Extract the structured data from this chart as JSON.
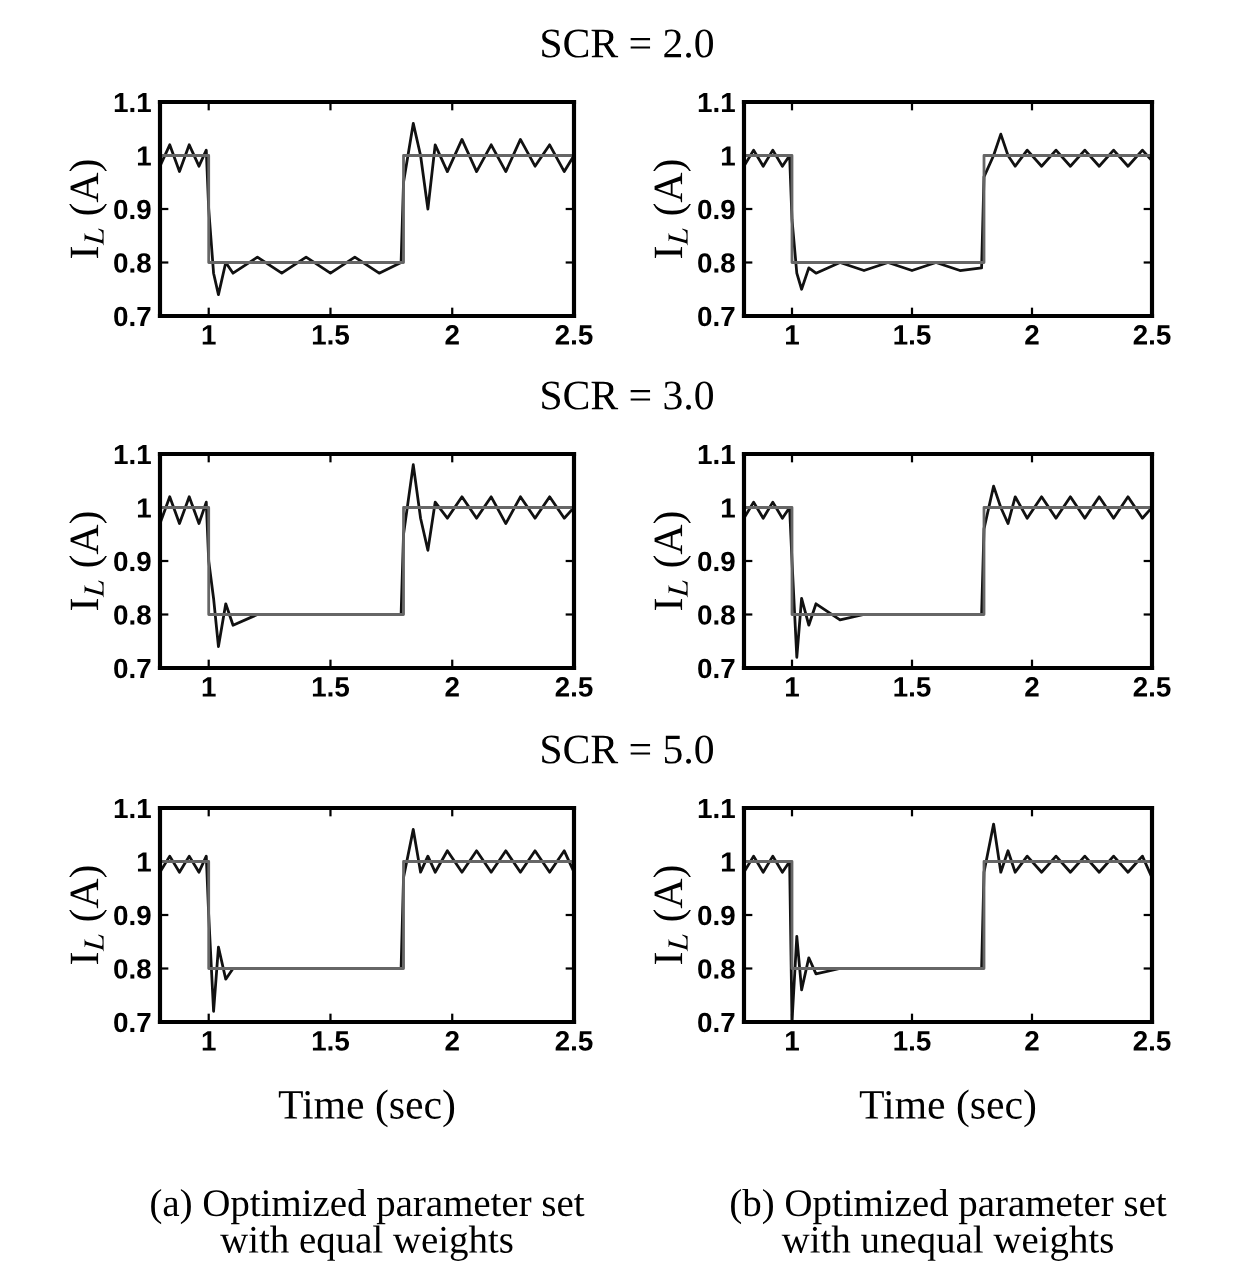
{
  "chart_data": [
    {
      "type": "line",
      "title": "SCR = 2.0",
      "ylabel": "I$_{L}$ (A)",
      "xlim": [
        0.8,
        2.5
      ],
      "xticks": [
        1,
        1.5,
        2,
        2.5
      ],
      "ylim": [
        0.7,
        1.1
      ],
      "yticks": [
        0.7,
        0.8,
        0.9,
        1,
        1.1
      ],
      "grid": false,
      "legend": false,
      "x": [
        0.8,
        0.84,
        0.88,
        0.92,
        0.96,
        0.99,
        1.0,
        1.02,
        1.04,
        1.07,
        1.1,
        1.2,
        1.3,
        1.4,
        1.5,
        1.6,
        1.7,
        1.79,
        1.8,
        1.84,
        1.87,
        1.9,
        1.93,
        1.98,
        2.04,
        2.1,
        2.16,
        2.22,
        2.28,
        2.34,
        2.4,
        2.46,
        2.5
      ],
      "series": [
        {
          "color": "#111111",
          "values": [
            0.98,
            1.02,
            0.97,
            1.02,
            0.98,
            1.01,
            0.9,
            0.78,
            0.74,
            0.8,
            0.78,
            0.81,
            0.78,
            0.81,
            0.78,
            0.81,
            0.78,
            0.8,
            0.95,
            1.06,
            1.0,
            0.9,
            1.02,
            0.97,
            1.03,
            0.97,
            1.02,
            0.97,
            1.03,
            0.98,
            1.02,
            0.97,
            1.0
          ]
        },
        {
          "color": "#666666",
          "x": [
            0.8,
            1.0,
            1.0,
            1.8,
            1.8,
            2.5
          ],
          "values": [
            1,
            1,
            0.8,
            0.8,
            1,
            1
          ]
        }
      ]
    },
    {
      "type": "line",
      "ylabel": "I$_{L}$ (A)",
      "xlim": [
        0.8,
        2.5
      ],
      "xticks": [
        1,
        1.5,
        2,
        2.5
      ],
      "ylim": [
        0.7,
        1.1
      ],
      "yticks": [
        0.7,
        0.8,
        0.9,
        1,
        1.1
      ],
      "grid": false,
      "legend": false,
      "x": [
        0.8,
        0.84,
        0.88,
        0.92,
        0.96,
        0.99,
        1.0,
        1.02,
        1.04,
        1.07,
        1.1,
        1.2,
        1.3,
        1.4,
        1.5,
        1.6,
        1.7,
        1.79,
        1.8,
        1.84,
        1.87,
        1.9,
        1.93,
        1.98,
        2.04,
        2.1,
        2.16,
        2.22,
        2.28,
        2.34,
        2.4,
        2.46,
        2.5
      ],
      "series": [
        {
          "color": "#111111",
          "values": [
            0.98,
            1.01,
            0.98,
            1.01,
            0.98,
            1.0,
            0.88,
            0.78,
            0.75,
            0.79,
            0.78,
            0.8,
            0.785,
            0.8,
            0.785,
            0.8,
            0.785,
            0.79,
            0.96,
            1.0,
            1.04,
            1.0,
            0.98,
            1.01,
            0.98,
            1.01,
            0.98,
            1.01,
            0.98,
            1.01,
            0.98,
            1.01,
            0.99
          ]
        },
        {
          "color": "#666666",
          "x": [
            0.8,
            1.0,
            1.0,
            1.8,
            1.8,
            2.5
          ],
          "values": [
            1,
            1,
            0.8,
            0.8,
            1,
            1
          ]
        }
      ]
    },
    {
      "type": "line",
      "title": "SCR = 3.0",
      "ylabel": "I$_{L}$ (A)",
      "xlim": [
        0.8,
        2.5
      ],
      "xticks": [
        1,
        1.5,
        2,
        2.5
      ],
      "ylim": [
        0.7,
        1.1
      ],
      "yticks": [
        0.7,
        0.8,
        0.9,
        1,
        1.1
      ],
      "grid": false,
      "legend": false,
      "x": [
        0.8,
        0.84,
        0.88,
        0.92,
        0.96,
        0.99,
        1.0,
        1.02,
        1.04,
        1.07,
        1.1,
        1.2,
        1.3,
        1.4,
        1.5,
        1.6,
        1.7,
        1.79,
        1.8,
        1.84,
        1.87,
        1.9,
        1.93,
        1.98,
        2.04,
        2.1,
        2.16,
        2.22,
        2.28,
        2.34,
        2.4,
        2.46,
        2.5
      ],
      "series": [
        {
          "color": "#111111",
          "values": [
            0.97,
            1.02,
            0.97,
            1.02,
            0.97,
            1.01,
            0.9,
            0.83,
            0.74,
            0.82,
            0.78,
            0.8,
            0.8,
            0.8,
            0.8,
            0.8,
            0.8,
            0.8,
            0.95,
            1.08,
            0.98,
            0.92,
            1.01,
            0.98,
            1.02,
            0.98,
            1.02,
            0.97,
            1.02,
            0.98,
            1.02,
            0.98,
            1.0
          ]
        },
        {
          "color": "#666666",
          "x": [
            0.8,
            1.0,
            1.0,
            1.8,
            1.8,
            2.5
          ],
          "values": [
            1,
            1,
            0.8,
            0.8,
            1,
            1
          ]
        }
      ]
    },
    {
      "type": "line",
      "ylabel": "I$_{L}$ (A)",
      "xlim": [
        0.8,
        2.5
      ],
      "xticks": [
        1,
        1.5,
        2,
        2.5
      ],
      "ylim": [
        0.7,
        1.1
      ],
      "yticks": [
        0.7,
        0.8,
        0.9,
        1,
        1.1
      ],
      "grid": false,
      "legend": false,
      "x": [
        0.8,
        0.84,
        0.88,
        0.92,
        0.96,
        0.99,
        1.0,
        1.02,
        1.04,
        1.07,
        1.1,
        1.2,
        1.3,
        1.4,
        1.5,
        1.6,
        1.7,
        1.79,
        1.8,
        1.84,
        1.87,
        1.9,
        1.93,
        1.98,
        2.04,
        2.1,
        2.16,
        2.22,
        2.28,
        2.34,
        2.4,
        2.46,
        2.5
      ],
      "series": [
        {
          "color": "#111111",
          "values": [
            0.98,
            1.01,
            0.98,
            1.01,
            0.98,
            1.0,
            0.9,
            0.72,
            0.83,
            0.78,
            0.82,
            0.79,
            0.8,
            0.8,
            0.8,
            0.8,
            0.8,
            0.8,
            0.96,
            1.04,
            1.0,
            0.97,
            1.02,
            0.98,
            1.02,
            0.98,
            1.02,
            0.98,
            1.02,
            0.98,
            1.02,
            0.98,
            1.0
          ]
        },
        {
          "color": "#666666",
          "x": [
            0.8,
            1.0,
            1.0,
            1.8,
            1.8,
            2.5
          ],
          "values": [
            1,
            1,
            0.8,
            0.8,
            1,
            1
          ]
        }
      ]
    },
    {
      "type": "line",
      "title": "SCR = 5.0",
      "ylabel": "I$_{L}$ (A)",
      "xlabel": "Time (sec)",
      "annotations": [
        "(a) Optimized parameter set\nwith equal weights"
      ],
      "xlim": [
        0.8,
        2.5
      ],
      "xticks": [
        1,
        1.5,
        2,
        2.5
      ],
      "ylim": [
        0.7,
        1.1
      ],
      "yticks": [
        0.7,
        0.8,
        0.9,
        1,
        1.1
      ],
      "grid": false,
      "legend": false,
      "x": [
        0.8,
        0.84,
        0.88,
        0.92,
        0.96,
        0.99,
        1.0,
        1.02,
        1.04,
        1.07,
        1.1,
        1.2,
        1.3,
        1.4,
        1.5,
        1.6,
        1.7,
        1.79,
        1.8,
        1.84,
        1.87,
        1.9,
        1.93,
        1.98,
        2.04,
        2.1,
        2.16,
        2.22,
        2.28,
        2.34,
        2.4,
        2.46,
        2.5
      ],
      "series": [
        {
          "color": "#111111",
          "values": [
            0.98,
            1.01,
            0.98,
            1.01,
            0.98,
            1.01,
            0.9,
            0.72,
            0.84,
            0.78,
            0.8,
            0.8,
            0.8,
            0.8,
            0.8,
            0.8,
            0.8,
            0.8,
            0.97,
            1.06,
            0.98,
            1.01,
            0.98,
            1.02,
            0.98,
            1.02,
            0.98,
            1.02,
            0.98,
            1.02,
            0.98,
            1.02,
            0.98
          ]
        },
        {
          "color": "#666666",
          "x": [
            0.8,
            1.0,
            1.0,
            1.8,
            1.8,
            2.5
          ],
          "values": [
            1,
            1,
            0.8,
            0.8,
            1,
            1
          ]
        }
      ]
    },
    {
      "type": "line",
      "ylabel": "I$_{L}$ (A)",
      "xlabel": "Time (sec)",
      "annotations": [
        "(b) Optimized parameter set\nwith unequal weights"
      ],
      "xlim": [
        0.8,
        2.5
      ],
      "xticks": [
        1,
        1.5,
        2,
        2.5
      ],
      "ylim": [
        0.7,
        1.1
      ],
      "yticks": [
        0.7,
        0.8,
        0.9,
        1,
        1.1
      ],
      "grid": false,
      "legend": false,
      "x": [
        0.8,
        0.84,
        0.88,
        0.92,
        0.96,
        0.99,
        1.0,
        1.02,
        1.04,
        1.07,
        1.1,
        1.2,
        1.3,
        1.4,
        1.5,
        1.6,
        1.7,
        1.79,
        1.8,
        1.84,
        1.87,
        1.9,
        1.93,
        1.98,
        2.04,
        2.1,
        2.16,
        2.22,
        2.28,
        2.34,
        2.4,
        2.46,
        2.5
      ],
      "series": [
        {
          "color": "#111111",
          "values": [
            0.98,
            1.01,
            0.98,
            1.01,
            0.98,
            1.0,
            0.7,
            0.86,
            0.76,
            0.82,
            0.79,
            0.8,
            0.8,
            0.8,
            0.8,
            0.8,
            0.8,
            0.8,
            0.98,
            1.07,
            0.98,
            1.02,
            0.98,
            1.01,
            0.98,
            1.01,
            0.98,
            1.01,
            0.98,
            1.01,
            0.98,
            1.01,
            0.97
          ]
        },
        {
          "color": "#666666",
          "x": [
            0.8,
            1.0,
            1.0,
            1.8,
            1.8,
            2.5
          ],
          "values": [
            1,
            1,
            0.8,
            0.8,
            1,
            1
          ]
        }
      ]
    }
  ]
}
